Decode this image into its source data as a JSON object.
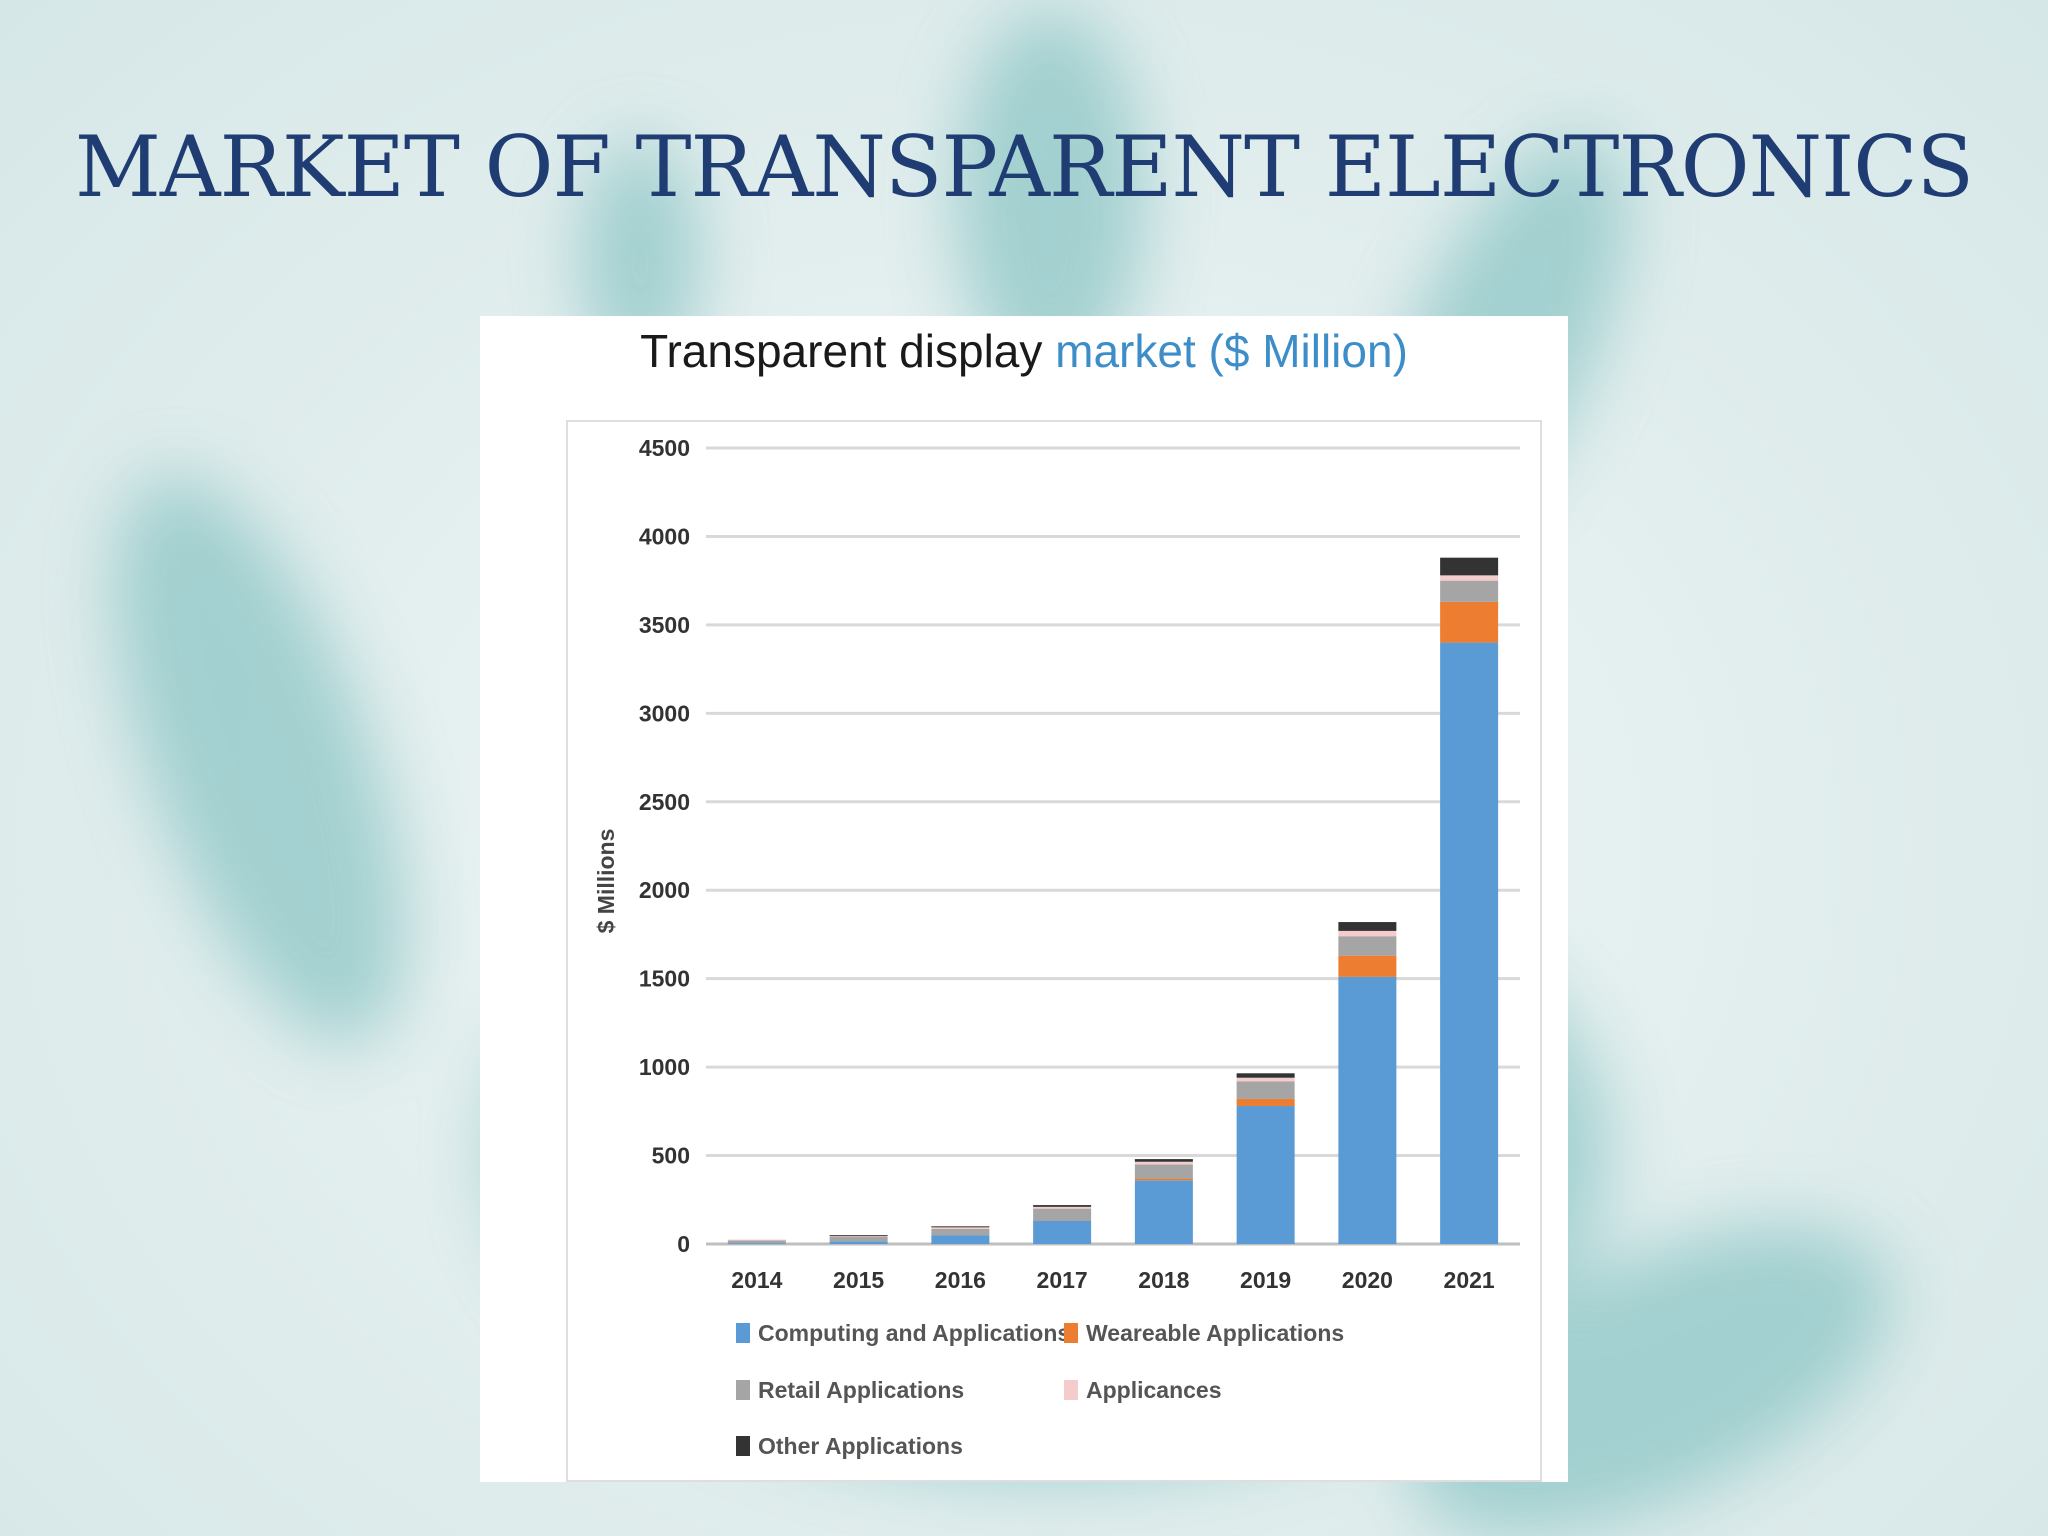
{
  "slide": {
    "title": "MARKET OF TRANSPARENT ELECTRONICS"
  },
  "colors": {
    "title": "#1f3d73",
    "accent": "#3d8ec8",
    "computing": "#5b9bd5",
    "wearable": "#ed7d31",
    "retail": "#a5a5a5",
    "appliances": "#f4cccc",
    "other": "#333333"
  },
  "chart_data": {
    "type": "bar",
    "stacked": true,
    "title_main": "Transparent display ",
    "title_accent": "market ($ Million)",
    "xlabel": "",
    "ylabel": "$ Millions",
    "ylim": [
      0,
      4500
    ],
    "yticks": [
      0,
      500,
      1000,
      1500,
      2000,
      2500,
      3000,
      3500,
      4000,
      4500
    ],
    "grid": true,
    "legend_position": "bottom",
    "categories": [
      "2014",
      "2015",
      "2016",
      "2017",
      "2018",
      "2019",
      "2020",
      "2021"
    ],
    "series": [
      {
        "name": "Computing and Applications",
        "color": "#5b9bd5",
        "values": [
          5,
          15,
          50,
          130,
          360,
          780,
          1510,
          3400
        ]
      },
      {
        "name": "Wearable Applications",
        "color": "#ed7d31",
        "values": [
          0,
          0,
          0,
          0,
          10,
          40,
          120,
          230
        ]
      },
      {
        "name": "Retail Applications",
        "color": "#a5a5a5",
        "values": [
          15,
          25,
          35,
          70,
          80,
          100,
          110,
          120
        ]
      },
      {
        "name": "Appliances",
        "color": "#f4cccc",
        "values": [
          5,
          5,
          10,
          10,
          15,
          20,
          30,
          30
        ]
      },
      {
        "name": "Other Applications",
        "color": "#333333",
        "values": [
          0,
          5,
          5,
          10,
          15,
          25,
          50,
          100
        ]
      }
    ],
    "legend": [
      {
        "label": "Computing and Applications",
        "color": "#5b9bd5"
      },
      {
        "label": "Weareable Applications",
        "color": "#ed7d31"
      },
      {
        "label": "Retail Applications",
        "color": "#a5a5a5"
      },
      {
        "label": "Applicances",
        "color": "#f4cccc"
      },
      {
        "label": "Other Applications",
        "color": "#333333"
      }
    ]
  }
}
